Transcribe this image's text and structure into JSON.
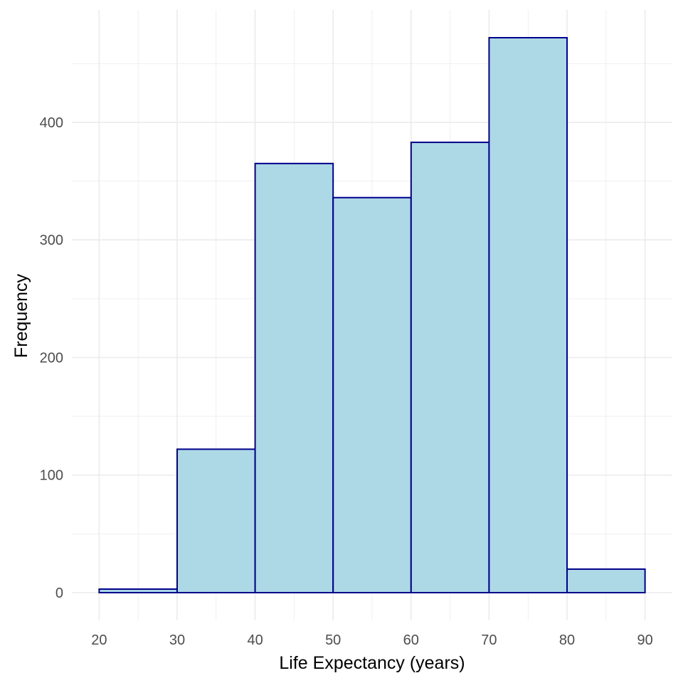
{
  "chart_data": {
    "type": "bar",
    "subtype": "histogram",
    "xlabel": "Life Expectancy (years)",
    "ylabel": "Frequency",
    "bins": [
      {
        "start": 20,
        "end": 30,
        "value": 3
      },
      {
        "start": 30,
        "end": 40,
        "value": 122
      },
      {
        "start": 40,
        "end": 50,
        "value": 365
      },
      {
        "start": 50,
        "end": 60,
        "value": 336
      },
      {
        "start": 60,
        "end": 70,
        "value": 383
      },
      {
        "start": 70,
        "end": 80,
        "value": 472
      },
      {
        "start": 80,
        "end": 90,
        "value": 20
      }
    ],
    "x_ticks": [
      20,
      30,
      40,
      50,
      60,
      70,
      80,
      90
    ],
    "y_ticks": [
      0,
      100,
      200,
      300,
      400
    ],
    "xlim": [
      16.5,
      93.5
    ],
    "ylim": [
      -23.6,
      495.6
    ],
    "grid": true,
    "colors": {
      "bar_fill": "#ADD8E6",
      "bar_outline": "#00008B",
      "grid": "#EBEBEB",
      "tick_text": "#4D4D4D",
      "title_text": "#000000"
    }
  }
}
